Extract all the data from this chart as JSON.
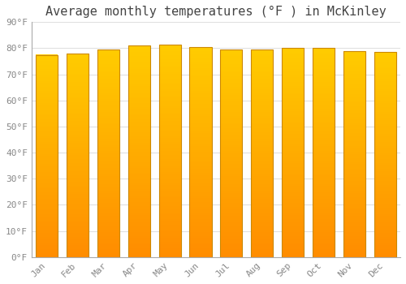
{
  "title": "Average monthly temperatures (°F ) in McKinley",
  "months": [
    "Jan",
    "Feb",
    "Mar",
    "Apr",
    "May",
    "Jun",
    "Jul",
    "Aug",
    "Sep",
    "Oct",
    "Nov",
    "Dec"
  ],
  "values": [
    77.5,
    78.0,
    79.5,
    81.0,
    81.5,
    80.5,
    79.5,
    79.5,
    80.0,
    80.0,
    79.0,
    78.5
  ],
  "bar_color_top": "#FFCC00",
  "bar_color_bottom": "#FF9900",
  "bar_edge_color": "#CC8800",
  "background_color": "#FFFFFF",
  "grid_color": "#E0E0E0",
  "text_color": "#888888",
  "title_color": "#444444",
  "ylim": [
    0,
    90
  ],
  "yticks": [
    0,
    10,
    20,
    30,
    40,
    50,
    60,
    70,
    80,
    90
  ],
  "ytick_labels": [
    "0°F",
    "10°F",
    "20°F",
    "30°F",
    "40°F",
    "50°F",
    "60°F",
    "70°F",
    "80°F",
    "90°F"
  ],
  "title_fontsize": 11,
  "tick_fontsize": 8,
  "font_family": "monospace",
  "bar_width": 0.72
}
